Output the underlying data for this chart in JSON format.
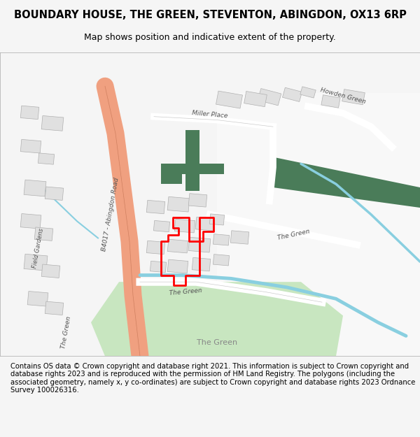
{
  "title": "BOUNDARY HOUSE, THE GREEN, STEVENTON, ABINGDON, OX13 6RP",
  "subtitle": "Map shows position and indicative extent of the property.",
  "footer": "Contains OS data © Crown copyright and database right 2021. This information is subject to Crown copyright and database rights 2023 and is reproduced with the permission of HM Land Registry. The polygons (including the associated geometry, namely x, y co-ordinates) are subject to Crown copyright and database rights 2023 Ordnance Survey 100026316.",
  "bg_color": "#f5f5f5",
  "map_bg": "#ffffff",
  "road_color_main": "#f0a080",
  "road_color_minor": "#ffffff",
  "green_dark": "#4a7c59",
  "green_light": "#c8e6c0",
  "blue_stream": "#89cfe0",
  "building_color": "#e0e0e0",
  "building_edge": "#b0b0b0",
  "red_outline": "#ff0000",
  "text_color": "#333333",
  "label_color": "#555555"
}
